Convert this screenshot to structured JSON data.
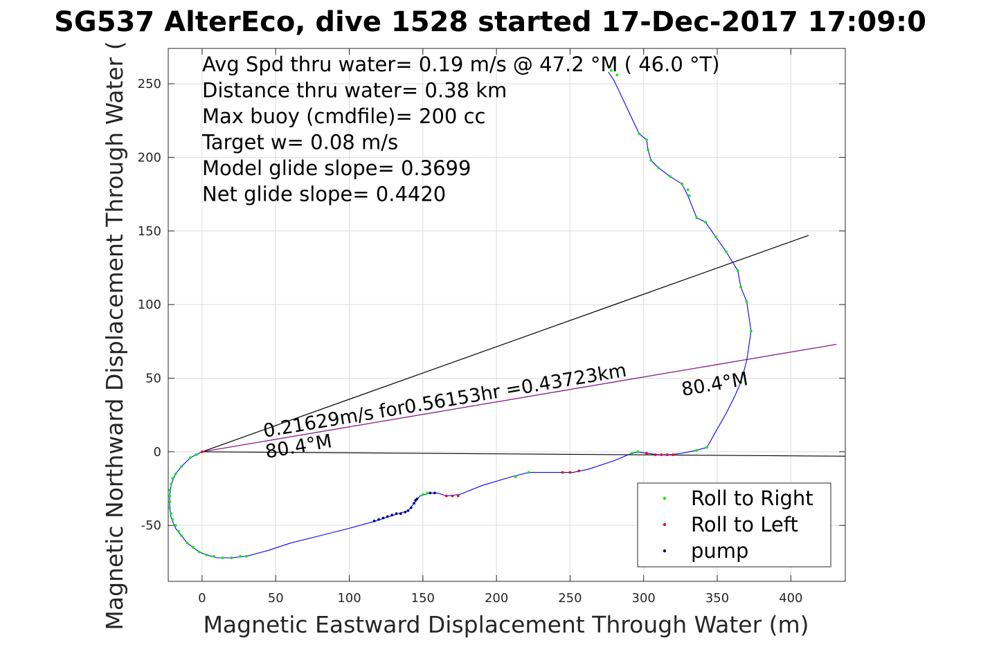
{
  "chart_data": {
    "type": "scatter",
    "title": "SG537 AlterEco, dive 1528 started 17-Dec-2017 17:09:0",
    "xlabel": "Magnetic Eastward Displacement Through Water (m)",
    "ylabel": "Magnetic Northward Displacement Through Water (",
    "xlim": [
      -23,
      437
    ],
    "ylim": [
      -88,
      274
    ],
    "xticks": [
      0,
      50,
      100,
      150,
      200,
      250,
      300,
      350,
      400
    ],
    "yticks": [
      -50,
      0,
      50,
      100,
      150,
      200,
      250
    ],
    "grid": true,
    "legend_position": "bottom-right",
    "info_lines": [
      "Avg Spd thru water=  0.19 m/s @  47.2 °M ( 46.0 °T)",
      "Distance thru water=  0.38 km",
      "Max buoy (cmdfile)= 200 cc",
      "Target w= 0.08 m/s",
      "Model glide slope= 0.3699",
      "Net glide slope= 0.4420"
    ],
    "annotations": {
      "current_label": "0.21629m/s for0.56153hr =0.43723km",
      "heading_near": "80.4°M",
      "heading_far": "80.4°M"
    },
    "colors": {
      "track": "#0000ff",
      "roll_right": "#00ee00",
      "roll_left": "#ff0000",
      "pump": "#000080",
      "current_line": "#cc00cc",
      "guide_lines": "#000000"
    },
    "series": [
      {
        "name": "track",
        "points": [
          [
            0,
            0
          ],
          [
            -4,
            -2
          ],
          [
            -8,
            -4
          ],
          [
            -14,
            -10
          ],
          [
            -18,
            -15
          ],
          [
            -21,
            -22
          ],
          [
            -22,
            -30
          ],
          [
            -22,
            -38
          ],
          [
            -21,
            -45
          ],
          [
            -18,
            -52
          ],
          [
            -14,
            -57
          ],
          [
            -10,
            -62
          ],
          [
            -6,
            -65
          ],
          [
            -2,
            -68
          ],
          [
            3,
            -70
          ],
          [
            10,
            -72
          ],
          [
            20,
            -72
          ],
          [
            30,
            -71
          ],
          [
            45,
            -67
          ],
          [
            60,
            -62
          ],
          [
            80,
            -57
          ],
          [
            100,
            -52
          ],
          [
            118,
            -47
          ],
          [
            130,
            -43
          ],
          [
            140,
            -40
          ],
          [
            144,
            -35
          ],
          [
            148,
            -30
          ],
          [
            155,
            -28
          ],
          [
            160,
            -28
          ],
          [
            166,
            -30
          ],
          [
            175,
            -29
          ],
          [
            190,
            -23
          ],
          [
            210,
            -17
          ],
          [
            222,
            -14
          ],
          [
            235,
            -14
          ],
          [
            252,
            -14
          ],
          [
            262,
            -12
          ],
          [
            280,
            -6
          ],
          [
            292,
            -1
          ],
          [
            296,
            0
          ],
          [
            302,
            -1
          ],
          [
            310,
            -2
          ],
          [
            318,
            -2
          ],
          [
            326,
            -1
          ],
          [
            336,
            1
          ],
          [
            343,
            3
          ],
          [
            348,
            12
          ],
          [
            356,
            26
          ],
          [
            362,
            38
          ],
          [
            366,
            47
          ],
          [
            370,
            62
          ],
          [
            373,
            82
          ],
          [
            370,
            102
          ],
          [
            366,
            112
          ],
          [
            364,
            123
          ],
          [
            356,
            136
          ],
          [
            349,
            146
          ],
          [
            342,
            156
          ],
          [
            336,
            159
          ],
          [
            330,
            174
          ],
          [
            326,
            182
          ],
          [
            318,
            187
          ],
          [
            310,
            193
          ],
          [
            305,
            198
          ],
          [
            303,
            205
          ],
          [
            302,
            212
          ],
          [
            297,
            216
          ],
          [
            280,
            252
          ],
          [
            276,
            258
          ]
        ]
      },
      {
        "name": "Roll to Right",
        "points": [
          [
            0,
            0
          ],
          [
            -4,
            -2
          ],
          [
            -8,
            -4
          ],
          [
            -14,
            -10
          ],
          [
            -18,
            -15
          ],
          [
            -20,
            -18
          ],
          [
            -21,
            -22
          ],
          [
            -22,
            -26
          ],
          [
            -22,
            -30
          ],
          [
            -22,
            -34
          ],
          [
            -22,
            -38
          ],
          [
            -21,
            -42
          ],
          [
            -20,
            -46
          ],
          [
            -18,
            -50
          ],
          [
            -16,
            -54
          ],
          [
            -14,
            -57
          ],
          [
            -10,
            -62
          ],
          [
            -6,
            -65
          ],
          [
            -2,
            -68
          ],
          [
            3,
            -70
          ],
          [
            8,
            -71
          ],
          [
            14,
            -72
          ],
          [
            20,
            -72
          ],
          [
            26,
            -71
          ],
          [
            30,
            -71
          ],
          [
            150,
            -29
          ],
          [
            153,
            -28
          ],
          [
            213,
            -17
          ],
          [
            222,
            -14
          ],
          [
            292,
            -1
          ],
          [
            296,
            0
          ],
          [
            336,
            1
          ],
          [
            343,
            3
          ],
          [
            366,
            47
          ],
          [
            373,
            82
          ],
          [
            370,
            102
          ],
          [
            366,
            112
          ],
          [
            364,
            123
          ],
          [
            356,
            136
          ],
          [
            349,
            146
          ],
          [
            342,
            156
          ],
          [
            336,
            159
          ],
          [
            331,
            174
          ],
          [
            330,
            178
          ],
          [
            326,
            182
          ],
          [
            318,
            187
          ],
          [
            310,
            193
          ],
          [
            305,
            198
          ],
          [
            303,
            205
          ],
          [
            302,
            212
          ],
          [
            297,
            216
          ],
          [
            282,
            256
          ],
          [
            278,
            259
          ]
        ]
      },
      {
        "name": "Roll to Left",
        "points": [
          [
            0,
            0
          ],
          [
            166,
            -30
          ],
          [
            170,
            -30
          ],
          [
            174,
            -30
          ],
          [
            245,
            -14
          ],
          [
            250,
            -14
          ],
          [
            256,
            -13
          ],
          [
            302,
            -1
          ],
          [
            308,
            -2
          ],
          [
            312,
            -2
          ],
          [
            316,
            -2
          ],
          [
            320,
            -2
          ]
        ]
      },
      {
        "name": "pump",
        "points": [
          [
            117,
            -47
          ],
          [
            120,
            -46
          ],
          [
            123,
            -45
          ],
          [
            126,
            -44
          ],
          [
            129,
            -43
          ],
          [
            132,
            -42
          ],
          [
            135,
            -42
          ],
          [
            138,
            -41
          ],
          [
            140,
            -40
          ],
          [
            142,
            -38
          ],
          [
            144,
            -35
          ],
          [
            145,
            -33
          ],
          [
            146,
            -32
          ],
          [
            155,
            -28
          ],
          [
            158,
            -28
          ]
        ]
      }
    ]
  }
}
